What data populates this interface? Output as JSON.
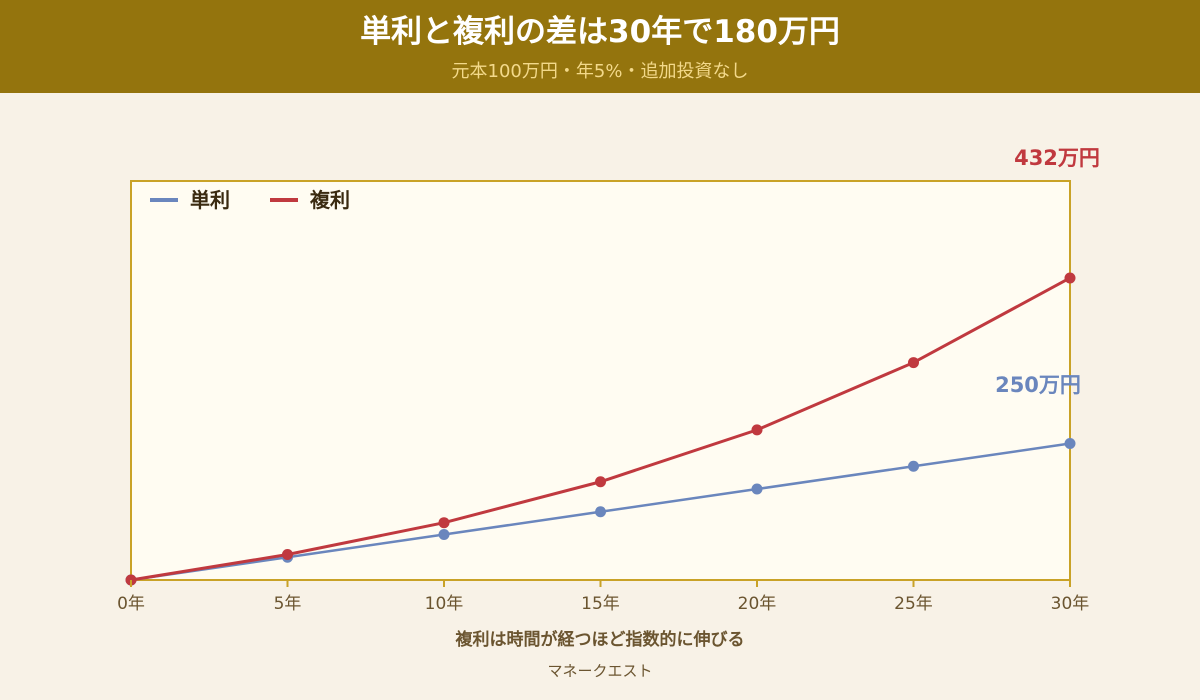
{
  "header": {
    "title": "単利と複利の差は30年で180万円",
    "subtitle": "元本100万円・年5%・追加投資なし"
  },
  "footer": {
    "caption": "複利は時間が経つほど指数的に伸びる",
    "source": "マネークエスト"
  },
  "colors": {
    "simple": "#6a86bd",
    "compound": "#c0393f",
    "frame": "#c9a227",
    "plot_bg": "#fffcf2",
    "tick_text": "#6b5530"
  },
  "chart_data": {
    "type": "line",
    "x": [
      0,
      5,
      10,
      15,
      20,
      25,
      30
    ],
    "x_tick_labels": [
      "0年",
      "5年",
      "10年",
      "15年",
      "20年",
      "25年",
      "30年"
    ],
    "ylim": [
      0,
      432
    ],
    "grid": false,
    "legend": "top-left",
    "series": [
      {
        "name": "単利",
        "key": "simple",
        "values": [
          0,
          25,
          50,
          75,
          100,
          125,
          150
        ],
        "end_label": "250万円"
      },
      {
        "name": "複利",
        "key": "compound",
        "values": [
          0,
          28,
          63,
          108,
          165,
          239,
          332
        ],
        "end_label": "432万円"
      }
    ]
  }
}
